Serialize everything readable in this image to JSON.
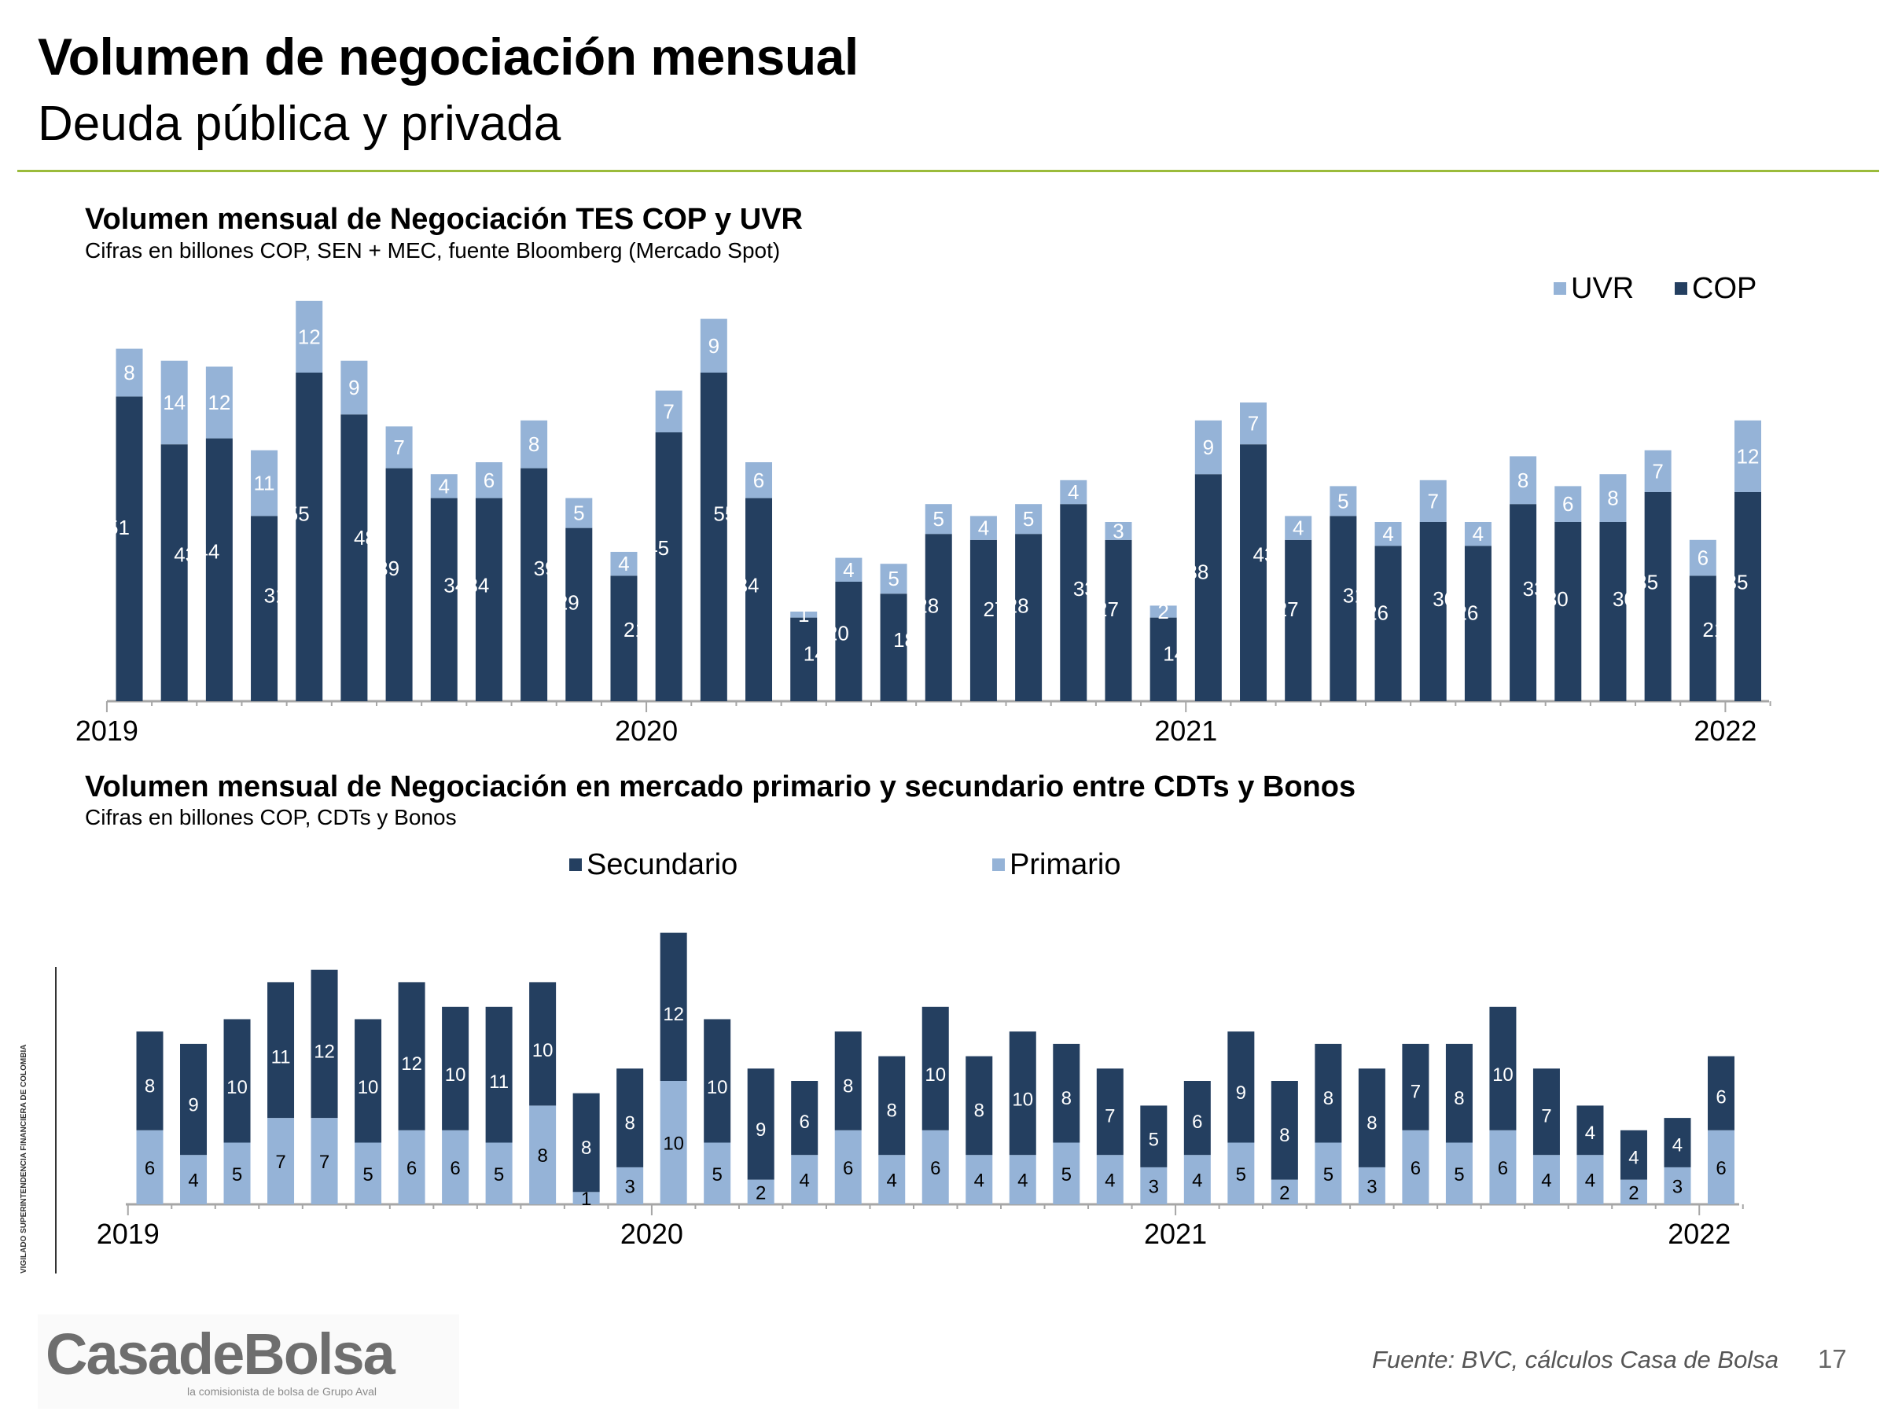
{
  "page": {
    "title": "Volumen de negociación mensual",
    "subtitle": "Deuda pública y privada",
    "source": "Fuente: BVC, cálculos Casa de Bolsa",
    "page_number": "17",
    "logo_text": "CasadeBolsa",
    "logo_tagline": "la comisionista de bolsa de Grupo Aval",
    "stamp_text": "VIGILADO SUPERINTENDENCIA FINANCIERA DE COLOMBIA",
    "accent_color": "#9bbb3b"
  },
  "chart1_header": {
    "title": "Volumen mensual de Negociación TES COP y UVR",
    "subtitle": "Cifras en billones COP, SEN + MEC, fuente Bloomberg (Mercado Spot)"
  },
  "chart2_header": {
    "title": "Volumen mensual de Negociación en mercado primario y secundario entre CDTs y Bonos",
    "subtitle": "Cifras en billones COP, CDTs y Bonos"
  },
  "chart_data": [
    {
      "type": "bar",
      "stacked": true,
      "title": "Volumen mensual de Negociación TES COP y UVR",
      "subtitle": "Cifras en billones COP, SEN + MEC, fuente Bloomberg (Mercado Spot)",
      "x_ticks": [
        "2019",
        "2020",
        "2021",
        "2022"
      ],
      "legend": [
        "UVR",
        "COP"
      ],
      "legend_position": "top-right",
      "ylim": [
        0,
        70
      ],
      "grid": false,
      "series": [
        {
          "name": "COP",
          "color": "#243f60",
          "values": [
            51,
            43,
            44,
            31,
            55,
            48,
            39,
            34,
            34,
            39,
            29,
            21,
            45,
            55,
            34,
            14,
            20,
            18,
            28,
            27,
            28,
            33,
            27,
            14,
            38,
            43,
            27,
            31,
            26,
            30,
            26,
            33,
            30,
            30,
            35,
            21,
            35
          ]
        },
        {
          "name": "UVR",
          "color": "#95b3d7",
          "values": [
            8,
            14,
            12,
            11,
            12,
            9,
            7,
            4,
            6,
            8,
            5,
            4,
            7,
            9,
            6,
            1,
            4,
            5,
            5,
            4,
            5,
            4,
            3,
            2,
            9,
            7,
            4,
            5,
            4,
            7,
            4,
            8,
            6,
            8,
            7,
            6,
            12
          ]
        }
      ]
    },
    {
      "type": "bar",
      "stacked": true,
      "title": "Volumen mensual de Negociación en mercado primario y secundario entre CDTs y Bonos",
      "subtitle": "Cifras en billones COP, CDTs y Bonos",
      "x_ticks": [
        "2019",
        "2020",
        "2021",
        "2022"
      ],
      "legend": [
        "Secundario",
        "Primario"
      ],
      "legend_position": "top-center",
      "ylim": [
        0,
        22
      ],
      "grid": false,
      "series": [
        {
          "name": "Primario",
          "color": "#95b3d7",
          "values": [
            6,
            4,
            5,
            7,
            7,
            5,
            6,
            6,
            5,
            8,
            1,
            3,
            10,
            5,
            2,
            4,
            6,
            4,
            6,
            4,
            4,
            5,
            4,
            3,
            4,
            5,
            2,
            5,
            3,
            6,
            5,
            6,
            4,
            4,
            2,
            3,
            6
          ]
        },
        {
          "name": "Secundario",
          "color": "#243f60",
          "values": [
            8,
            9,
            10,
            11,
            12,
            10,
            12,
            10,
            11,
            10,
            8,
            8,
            12,
            10,
            9,
            6,
            8,
            8,
            10,
            8,
            10,
            8,
            7,
            5,
            6,
            9,
            8,
            8,
            8,
            7,
            8,
            10,
            7,
            4,
            4,
            4,
            6
          ]
        }
      ]
    }
  ]
}
